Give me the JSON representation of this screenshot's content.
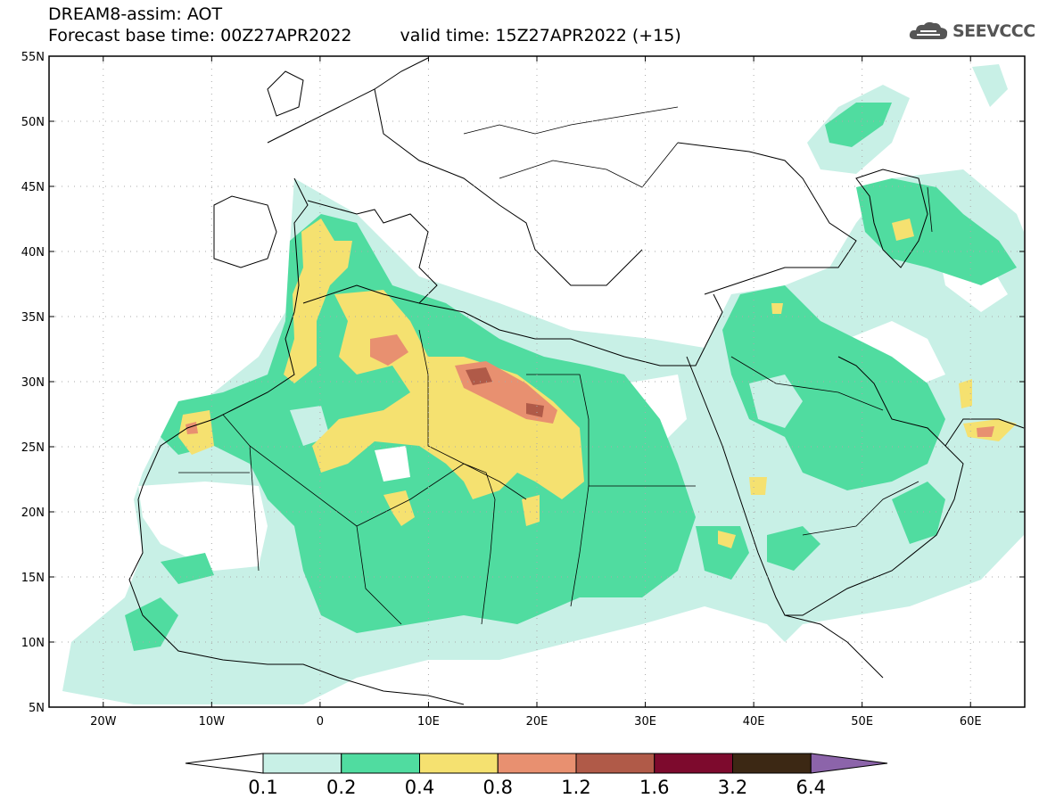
{
  "title": {
    "line1": "DREAM8-assim: AOT",
    "line2_base": "Forecast base time: 00Z27APR2022",
    "line2_valid": "valid time: 15Z27APR2022 (+15)"
  },
  "logo": {
    "icon": "cloud-logo-icon",
    "text": "SEEVCCC"
  },
  "map": {
    "type": "heatmap",
    "variable": "AOT",
    "lon_range": [
      -25,
      65
    ],
    "lat_range": [
      5,
      55
    ],
    "y_ticks": [
      "5N",
      "10N",
      "15N",
      "20N",
      "25N",
      "30N",
      "35N",
      "40N",
      "45N",
      "50N",
      "55N"
    ],
    "x_ticks": [
      "20W",
      "10W",
      "0",
      "10E",
      "20E",
      "30E",
      "40E",
      "50E",
      "60E"
    ],
    "grid": "dotted"
  },
  "colorbar": {
    "labels": [
      "0.1",
      "0.2",
      "0.4",
      "0.8",
      "1.2",
      "1.6",
      "3.2",
      "6.4"
    ],
    "colors": [
      "#ffffff",
      "#c8f0e6",
      "#50dca0",
      "#f5e170",
      "#e89070",
      "#b05a48",
      "#7d0a2d",
      "#3c2814",
      "#8c64aa"
    ]
  }
}
